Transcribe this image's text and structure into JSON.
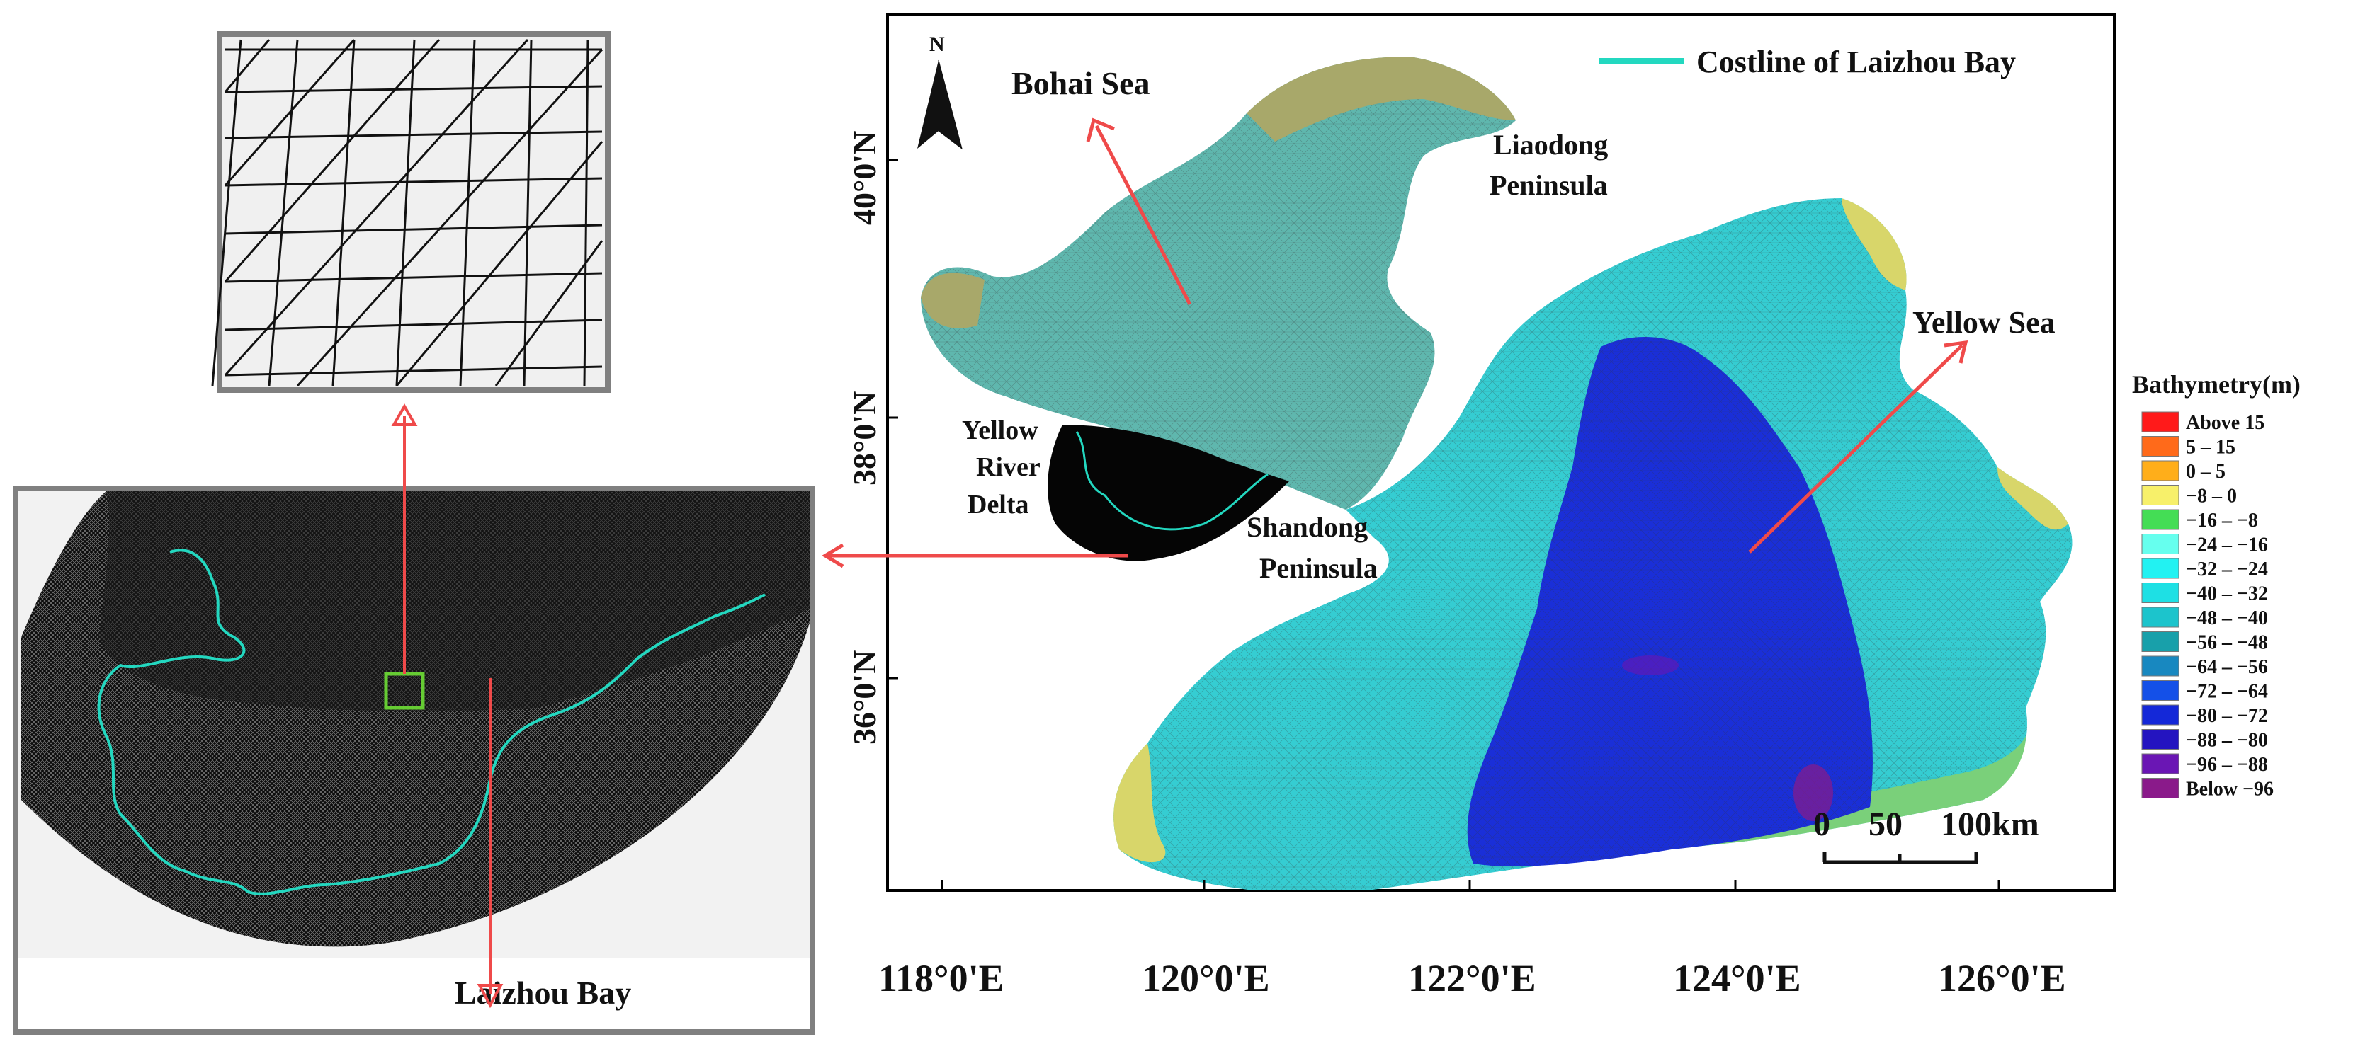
{
  "map": {
    "north_label": "N",
    "place_labels": {
      "bohai_sea": "Bohai Sea",
      "liaodong": [
        "Liaodong",
        "Peninsula"
      ],
      "yellow_sea": "Yellow Sea",
      "yellow_river_delta": [
        "Yellow",
        "River",
        "Delta"
      ],
      "shandong": [
        "Shandong",
        "Peninsula"
      ],
      "laizhou_bay": "Laizhou  Bay"
    },
    "legend_line_label": "Costline of Laizhou Bay",
    "lat_ticks": [
      "40°0'N",
      "38°0'N",
      "36°0'N"
    ],
    "lon_ticks": [
      "118°0'E",
      "120°0'E",
      "122°0'E",
      "124°0'E",
      "126°0'E"
    ],
    "scale_bar": {
      "labels": [
        "0",
        "50",
        "100km"
      ]
    },
    "bathymetry_legend": {
      "title": "Bathymetry(m)",
      "classes": [
        {
          "label": "Above  15",
          "color": "#ff1a1a"
        },
        {
          "label": "5 –    15",
          "color": "#ff6a1a"
        },
        {
          "label": "0 –    5",
          "color": "#ffae1a"
        },
        {
          "label": "−8 –    0",
          "color": "#f7f06a"
        },
        {
          "label": "−16 – −8",
          "color": "#44dd55"
        },
        {
          "label": "−24 – −16",
          "color": "#66ffee"
        },
        {
          "label": "−32 – −24",
          "color": "#22f2f2"
        },
        {
          "label": "−40 – −32",
          "color": "#1ee0e4"
        },
        {
          "label": "−48 – −40",
          "color": "#1cc4cc"
        },
        {
          "label": "−56 – −48",
          "color": "#18a0aa"
        },
        {
          "label": "−64 – −56",
          "color": "#1888c0"
        },
        {
          "label": "−72 – −64",
          "color": "#1450e8"
        },
        {
          "label": "−80 – −72",
          "color": "#1428d8"
        },
        {
          "label": "−88 – −80",
          "color": "#2414c0"
        },
        {
          "label": "−96 – −88",
          "color": "#6a16b4"
        },
        {
          "label": "Below  −96",
          "color": "#8a1a8a"
        }
      ]
    },
    "colors": {
      "coastline": "#23d8c0",
      "arrow": "#ef4a4a",
      "frame": "#808080",
      "highlight_box": "#66cc33"
    }
  }
}
